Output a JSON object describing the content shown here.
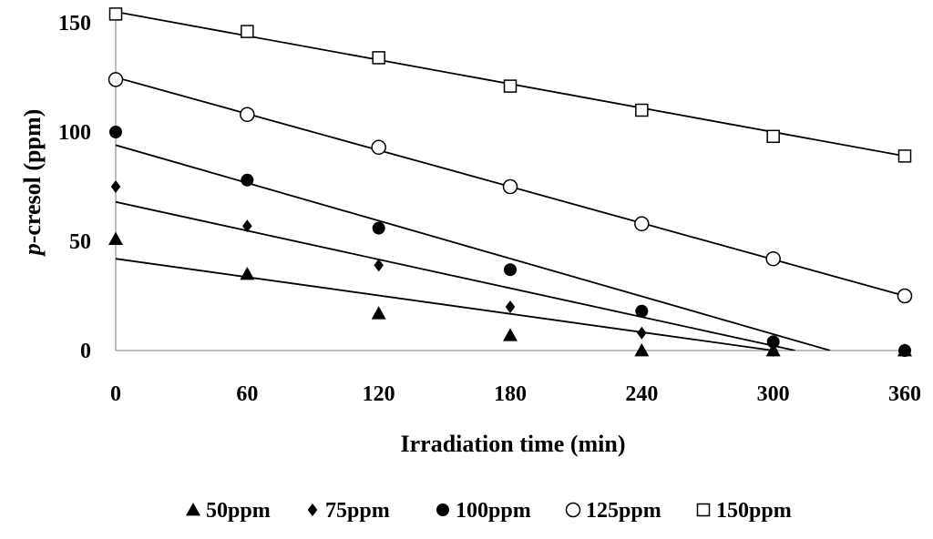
{
  "chart_data": {
    "type": "scatter",
    "title": "",
    "xlabel": "Irradiation time (min)",
    "ylabel_italic_part": "p",
    "ylabel_rest": "-cresol (ppm)",
    "x_ticks": [
      0,
      60,
      120,
      180,
      240,
      300,
      360
    ],
    "y_ticks": [
      0,
      50,
      100,
      150
    ],
    "xlim": [
      0,
      360
    ],
    "ylim": [
      0,
      155
    ],
    "legend_position": "bottom",
    "series": [
      {
        "name": "50ppm",
        "marker": "filled-triangle",
        "x": [
          0,
          60,
          120,
          180,
          240,
          300,
          360
        ],
        "y": [
          51,
          35,
          17,
          7,
          0,
          0,
          0
        ],
        "trend_x": [
          0,
          300
        ],
        "trend_y": [
          42,
          0
        ]
      },
      {
        "name": "75ppm",
        "marker": "filled-diamond",
        "x": [
          0,
          60,
          120,
          180,
          240,
          300,
          360
        ],
        "y": [
          75,
          57,
          39,
          20,
          8,
          0,
          0
        ],
        "trend_x": [
          0,
          310
        ],
        "trend_y": [
          68,
          0
        ]
      },
      {
        "name": "100ppm",
        "marker": "filled-circle",
        "x": [
          0,
          60,
          120,
          180,
          240,
          300,
          360
        ],
        "y": [
          100,
          78,
          56,
          37,
          18,
          4,
          0
        ],
        "trend_x": [
          0,
          326
        ],
        "trend_y": [
          94,
          0
        ]
      },
      {
        "name": "125ppm",
        "marker": "open-circle",
        "x": [
          0,
          60,
          120,
          180,
          240,
          300,
          360
        ],
        "y": [
          124,
          108,
          93,
          75,
          58,
          42,
          25
        ],
        "trend_x": [
          0,
          360
        ],
        "trend_y": [
          125,
          25
        ]
      },
      {
        "name": "150ppm",
        "marker": "open-square",
        "x": [
          0,
          60,
          120,
          180,
          240,
          300,
          360
        ],
        "y": [
          154,
          146,
          134,
          121,
          110,
          98,
          89
        ],
        "trend_x": [
          0,
          360
        ],
        "trend_y": [
          155,
          89
        ]
      }
    ]
  }
}
